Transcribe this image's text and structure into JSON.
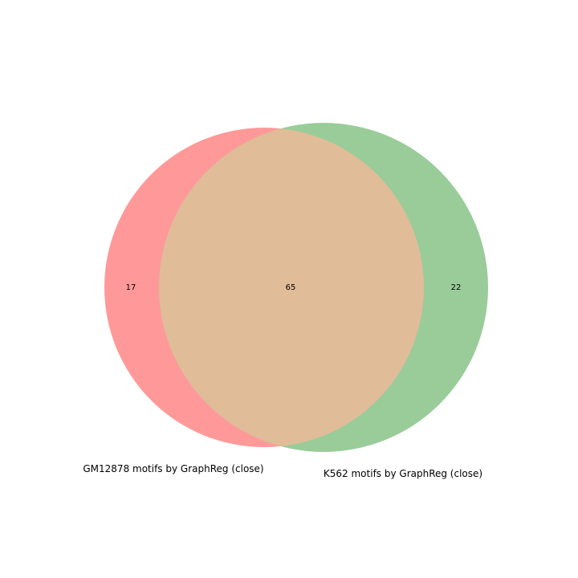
{
  "venn": {
    "sets": [
      {
        "name": "GM12878 motifs by GraphReg (close)",
        "color": "#ff9999"
      },
      {
        "name": "K562 motifs by GraphReg (close)",
        "color": "#99cc99"
      }
    ],
    "overlap_color": "#e0bc98",
    "regions": {
      "only_a": "17",
      "both": "65",
      "only_b": "22"
    }
  }
}
